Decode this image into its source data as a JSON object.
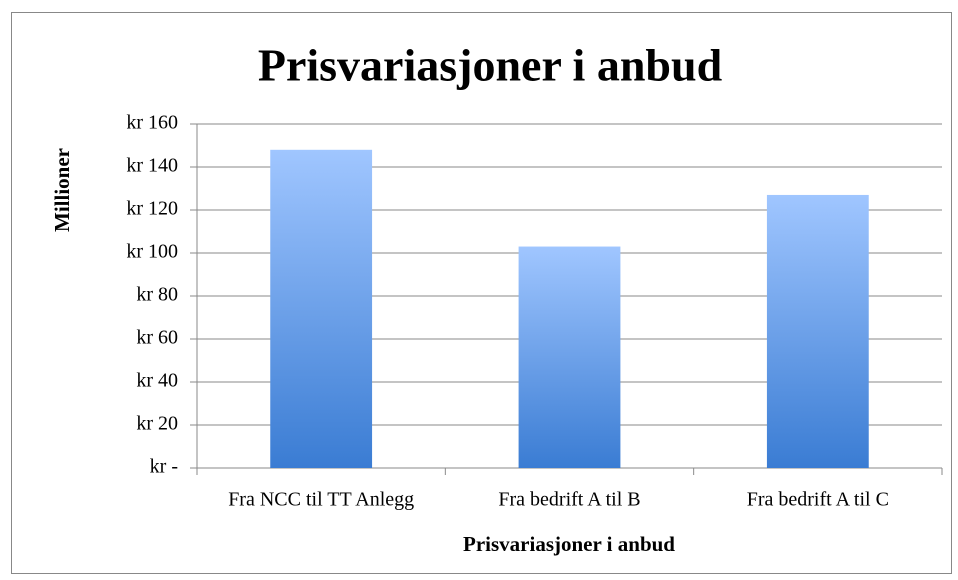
{
  "chart_data": {
    "type": "bar",
    "title": "Prisvariasjoner i anbud",
    "x_label": "Prisvariasjoner i anbud",
    "y_label": "Millioner",
    "categories": [
      "Fra NCC til TT Anlegg",
      "Fra bedrift A til B",
      "Fra bedrift A til C"
    ],
    "values": [
      148,
      103,
      127
    ],
    "gradient": [
      "#a0c6ff",
      "#3a7cd3"
    ],
    "ylim": [
      0,
      160
    ],
    "yticks": [
      {
        "value": 0,
        "label": "kr -"
      },
      {
        "value": 20,
        "label": "kr 20"
      },
      {
        "value": 40,
        "label": "kr 40"
      },
      {
        "value": 60,
        "label": "kr 60"
      },
      {
        "value": 80,
        "label": "kr 80"
      },
      {
        "value": 100,
        "label": "kr 100"
      },
      {
        "value": 120,
        "label": "kr 120"
      },
      {
        "value": 140,
        "label": "kr 140"
      },
      {
        "value": 160,
        "label": "kr 160"
      }
    ],
    "grid": true
  }
}
